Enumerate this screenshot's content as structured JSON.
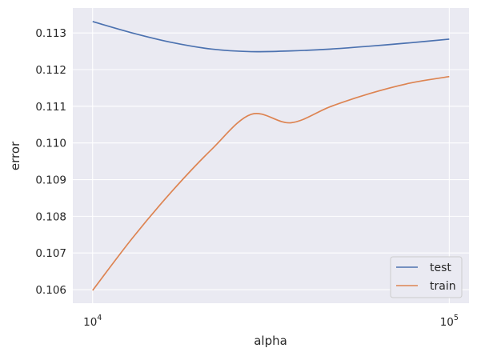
{
  "chart_data": {
    "type": "line",
    "xlabel": "alpha",
    "ylabel": "error",
    "xscale": "log",
    "xlim": [
      8800,
      113600
    ],
    "ylim": [
      0.10563,
      0.11368
    ],
    "x_ticks": [
      {
        "base": "10",
        "exp": "4",
        "value": 10000
      },
      {
        "base": "10",
        "exp": "5",
        "value": 100000
      }
    ],
    "y_ticks": [
      "0.106",
      "0.107",
      "0.108",
      "0.109",
      "0.110",
      "0.111",
      "0.112",
      "0.113"
    ],
    "grid": true,
    "legend_position": "lower right",
    "x": [
      10000,
      12915,
      16681,
      21544,
      27826,
      35938,
      46416,
      59948,
      77426,
      100000
    ],
    "series": [
      {
        "name": "test",
        "color": "#4c72b0",
        "values": [
          0.11331,
          0.113,
          0.11274,
          0.11256,
          0.11249,
          0.11251,
          0.11256,
          0.11264,
          0.11273,
          0.11283
        ]
      },
      {
        "name": "train",
        "color": "#dd8452",
        "values": [
          0.10598,
          0.1074,
          0.10868,
          0.10982,
          0.11078,
          0.11055,
          0.11099,
          0.11135,
          0.11163,
          0.11181
        ]
      }
    ]
  }
}
